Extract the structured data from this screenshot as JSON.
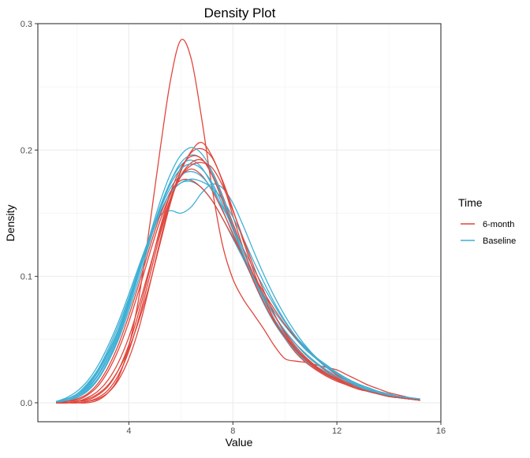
{
  "chart_data": {
    "type": "line",
    "title": "Density Plot",
    "xlabel": "Value",
    "ylabel": "Density",
    "xlim": [
      0.5,
      16
    ],
    "ylim": [
      -0.015,
      0.3
    ],
    "x_ticks": [
      4,
      8,
      12,
      16
    ],
    "x_tick_labels": [
      "4",
      "8",
      "12",
      "16"
    ],
    "y_ticks": [
      0.0,
      0.1,
      0.2,
      0.3
    ],
    "y_tick_labels": [
      "0.0",
      "0.1",
      "0.2",
      "0.3"
    ],
    "grid": true,
    "legend": {
      "title": "Time",
      "position": "right",
      "entries": [
        {
          "label": "6-month",
          "color": "#E0463C"
        },
        {
          "label": "Baseline",
          "color": "#3FAFD4"
        }
      ]
    },
    "x": [
      1.2,
      1.6,
      2.0,
      2.4,
      2.8,
      3.2,
      3.6,
      4.0,
      4.4,
      4.8,
      5.2,
      5.6,
      6.0,
      6.4,
      6.8,
      7.2,
      7.6,
      8.0,
      8.4,
      8.8,
      9.2,
      9.6,
      10.0,
      10.4,
      10.8,
      11.2,
      11.6,
      12.0,
      12.4,
      12.8,
      13.2,
      13.6,
      14.0,
      14.4,
      14.8,
      15.2
    ],
    "series": [
      {
        "group": "6-month",
        "values": [
          0.0,
          0.0,
          0.0,
          0.0,
          0.002,
          0.008,
          0.02,
          0.045,
          0.085,
          0.14,
          0.2,
          0.255,
          0.287,
          0.272,
          0.225,
          0.17,
          0.125,
          0.098,
          0.082,
          0.07,
          0.058,
          0.045,
          0.035,
          0.033,
          0.032,
          0.03,
          0.028,
          0.026,
          0.022,
          0.018,
          0.014,
          0.011,
          0.008,
          0.006,
          0.004,
          0.002
        ]
      },
      {
        "group": "6-month",
        "values": [
          0.0,
          0.0,
          0.001,
          0.003,
          0.007,
          0.014,
          0.026,
          0.043,
          0.066,
          0.094,
          0.126,
          0.158,
          0.183,
          0.199,
          0.206,
          0.195,
          0.175,
          0.148,
          0.122,
          0.1,
          0.082,
          0.066,
          0.053,
          0.043,
          0.035,
          0.028,
          0.023,
          0.019,
          0.015,
          0.012,
          0.009,
          0.007,
          0.005,
          0.004,
          0.003,
          0.002
        ]
      },
      {
        "group": "6-month",
        "values": [
          0.0,
          0.001,
          0.002,
          0.006,
          0.013,
          0.025,
          0.042,
          0.064,
          0.09,
          0.118,
          0.144,
          0.165,
          0.179,
          0.185,
          0.18,
          0.168,
          0.152,
          0.134,
          0.116,
          0.099,
          0.083,
          0.069,
          0.057,
          0.047,
          0.038,
          0.031,
          0.025,
          0.02,
          0.016,
          0.013,
          0.01,
          0.008,
          0.006,
          0.004,
          0.003,
          0.002
        ]
      },
      {
        "group": "6-month",
        "values": [
          0.0,
          0.0,
          0.001,
          0.004,
          0.009,
          0.018,
          0.032,
          0.052,
          0.078,
          0.107,
          0.136,
          0.162,
          0.18,
          0.19,
          0.192,
          0.183,
          0.164,
          0.142,
          0.121,
          0.101,
          0.084,
          0.069,
          0.056,
          0.045,
          0.036,
          0.029,
          0.023,
          0.018,
          0.014,
          0.011,
          0.009,
          0.007,
          0.005,
          0.004,
          0.003,
          0.002
        ]
      },
      {
        "group": "6-month",
        "values": [
          0.0,
          0.0,
          0.0,
          0.001,
          0.003,
          0.008,
          0.018,
          0.035,
          0.06,
          0.093,
          0.128,
          0.16,
          0.184,
          0.198,
          0.201,
          0.194,
          0.176,
          0.153,
          0.128,
          0.104,
          0.083,
          0.065,
          0.051,
          0.04,
          0.032,
          0.026,
          0.021,
          0.017,
          0.014,
          0.011,
          0.009,
          0.007,
          0.005,
          0.004,
          0.003,
          0.002
        ]
      },
      {
        "group": "6-month",
        "values": [
          0.0,
          0.001,
          0.003,
          0.007,
          0.015,
          0.028,
          0.046,
          0.069,
          0.095,
          0.123,
          0.148,
          0.167,
          0.176,
          0.176,
          0.17,
          0.16,
          0.146,
          0.131,
          0.116,
          0.101,
          0.087,
          0.074,
          0.062,
          0.052,
          0.043,
          0.035,
          0.028,
          0.022,
          0.017,
          0.013,
          0.01,
          0.008,
          0.006,
          0.004,
          0.003,
          0.002
        ]
      },
      {
        "group": "6-month",
        "values": [
          0.0,
          0.0,
          0.001,
          0.002,
          0.006,
          0.013,
          0.026,
          0.046,
          0.073,
          0.105,
          0.138,
          0.166,
          0.186,
          0.195,
          0.193,
          0.18,
          0.16,
          0.138,
          0.116,
          0.096,
          0.079,
          0.064,
          0.052,
          0.042,
          0.034,
          0.028,
          0.023,
          0.019,
          0.015,
          0.012,
          0.009,
          0.007,
          0.005,
          0.004,
          0.003,
          0.002
        ]
      },
      {
        "group": "6-month",
        "values": [
          0.0,
          0.0,
          0.0,
          0.001,
          0.004,
          0.01,
          0.022,
          0.041,
          0.068,
          0.1,
          0.133,
          0.16,
          0.179,
          0.188,
          0.19,
          0.186,
          0.172,
          0.152,
          0.13,
          0.108,
          0.088,
          0.07,
          0.055,
          0.043,
          0.034,
          0.027,
          0.022,
          0.018,
          0.014,
          0.011,
          0.009,
          0.007,
          0.005,
          0.004,
          0.003,
          0.002
        ]
      },
      {
        "group": "Baseline",
        "values": [
          0.001,
          0.003,
          0.007,
          0.014,
          0.025,
          0.04,
          0.058,
          0.08,
          0.104,
          0.128,
          0.15,
          0.166,
          0.174,
          0.175,
          0.17,
          0.16,
          0.146,
          0.13,
          0.114,
          0.099,
          0.085,
          0.072,
          0.061,
          0.051,
          0.042,
          0.035,
          0.029,
          0.024,
          0.019,
          0.015,
          0.012,
          0.009,
          0.007,
          0.005,
          0.004,
          0.003
        ]
      },
      {
        "group": "Baseline",
        "values": [
          0.0,
          0.002,
          0.005,
          0.011,
          0.021,
          0.035,
          0.054,
          0.077,
          0.103,
          0.13,
          0.155,
          0.175,
          0.188,
          0.192,
          0.186,
          0.172,
          0.153,
          0.133,
          0.114,
          0.097,
          0.082,
          0.069,
          0.057,
          0.047,
          0.039,
          0.032,
          0.026,
          0.021,
          0.017,
          0.013,
          0.01,
          0.008,
          0.006,
          0.004,
          0.003,
          0.002
        ]
      },
      {
        "group": "Baseline",
        "values": [
          0.001,
          0.004,
          0.009,
          0.017,
          0.029,
          0.045,
          0.064,
          0.086,
          0.109,
          0.131,
          0.148,
          0.152,
          0.15,
          0.155,
          0.166,
          0.173,
          0.17,
          0.158,
          0.14,
          0.12,
          0.101,
          0.084,
          0.069,
          0.056,
          0.045,
          0.036,
          0.029,
          0.023,
          0.018,
          0.014,
          0.011,
          0.008,
          0.006,
          0.005,
          0.004,
          0.003
        ]
      },
      {
        "group": "Baseline",
        "values": [
          0.0,
          0.001,
          0.004,
          0.009,
          0.018,
          0.032,
          0.05,
          0.073,
          0.099,
          0.127,
          0.153,
          0.175,
          0.19,
          0.196,
          0.193,
          0.181,
          0.162,
          0.14,
          0.118,
          0.098,
          0.081,
          0.066,
          0.054,
          0.044,
          0.036,
          0.029,
          0.024,
          0.019,
          0.015,
          0.012,
          0.009,
          0.007,
          0.005,
          0.004,
          0.003,
          0.002
        ]
      },
      {
        "group": "Baseline",
        "values": [
          0.001,
          0.003,
          0.006,
          0.013,
          0.024,
          0.039,
          0.058,
          0.081,
          0.106,
          0.131,
          0.153,
          0.17,
          0.18,
          0.183,
          0.179,
          0.169,
          0.155,
          0.139,
          0.122,
          0.106,
          0.091,
          0.077,
          0.064,
          0.053,
          0.044,
          0.036,
          0.03,
          0.024,
          0.019,
          0.015,
          0.012,
          0.009,
          0.007,
          0.005,
          0.004,
          0.003
        ]
      },
      {
        "group": "Baseline",
        "values": [
          0.0,
          0.002,
          0.004,
          0.01,
          0.019,
          0.033,
          0.052,
          0.076,
          0.103,
          0.132,
          0.159,
          0.181,
          0.196,
          0.202,
          0.197,
          0.183,
          0.163,
          0.14,
          0.117,
          0.096,
          0.078,
          0.063,
          0.051,
          0.041,
          0.033,
          0.027,
          0.022,
          0.018,
          0.015,
          0.012,
          0.009,
          0.007,
          0.005,
          0.004,
          0.003,
          0.002
        ]
      },
      {
        "group": "Baseline",
        "values": [
          0.001,
          0.003,
          0.007,
          0.015,
          0.026,
          0.042,
          0.061,
          0.083,
          0.107,
          0.131,
          0.151,
          0.166,
          0.174,
          0.177,
          0.175,
          0.17,
          0.161,
          0.147,
          0.13,
          0.112,
          0.095,
          0.079,
          0.065,
          0.053,
          0.043,
          0.035,
          0.028,
          0.023,
          0.018,
          0.014,
          0.011,
          0.008,
          0.006,
          0.005,
          0.004,
          0.003
        ]
      },
      {
        "group": "Baseline",
        "values": [
          0.0,
          0.002,
          0.005,
          0.012,
          0.022,
          0.037,
          0.056,
          0.079,
          0.104,
          0.13,
          0.154,
          0.173,
          0.185,
          0.189,
          0.185,
          0.174,
          0.157,
          0.137,
          0.117,
          0.099,
          0.083,
          0.069,
          0.057,
          0.047,
          0.038,
          0.031,
          0.026,
          0.021,
          0.017,
          0.013,
          0.01,
          0.008,
          0.006,
          0.004,
          0.003,
          0.002
        ]
      }
    ]
  }
}
